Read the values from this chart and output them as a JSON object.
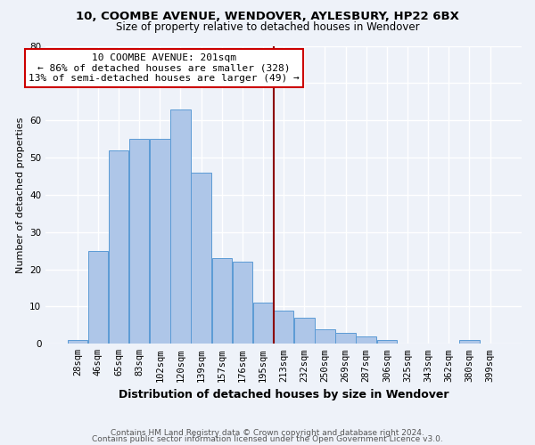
{
  "title1": "10, COOMBE AVENUE, WENDOVER, AYLESBURY, HP22 6BX",
  "title2": "Size of property relative to detached houses in Wendover",
  "xlabel": "Distribution of detached houses by size in Wendover",
  "ylabel": "Number of detached properties",
  "footer1": "Contains HM Land Registry data © Crown copyright and database right 2024.",
  "footer2": "Contains public sector information licensed under the Open Government Licence v3.0.",
  "annotation_line1": "10 COOMBE AVENUE: 201sqm",
  "annotation_line2": "← 86% of detached houses are smaller (328)",
  "annotation_line3": "13% of semi-detached houses are larger (49) →",
  "bar_labels": [
    "28sqm",
    "46sqm",
    "65sqm",
    "83sqm",
    "102sqm",
    "120sqm",
    "139sqm",
    "157sqm",
    "176sqm",
    "195sqm",
    "213sqm",
    "232sqm",
    "250sqm",
    "269sqm",
    "287sqm",
    "306sqm",
    "325sqm",
    "343sqm",
    "362sqm",
    "380sqm",
    "399sqm"
  ],
  "bar_values": [
    1,
    25,
    52,
    55,
    55,
    63,
    46,
    23,
    22,
    11,
    9,
    7,
    4,
    3,
    2,
    1,
    0,
    0,
    0,
    1,
    0
  ],
  "bar_color": "#aec6e8",
  "bar_edge_color": "#5b9bd5",
  "marker_color": "#8b0000",
  "ylim": [
    0,
    80
  ],
  "yticks": [
    0,
    10,
    20,
    30,
    40,
    50,
    60,
    70,
    80
  ],
  "bg_color": "#eef2f9",
  "grid_color": "#ffffff",
  "annotation_box_edge": "#cc0000",
  "title1_fontsize": 9.5,
  "title2_fontsize": 8.5,
  "xlabel_fontsize": 9,
  "ylabel_fontsize": 8,
  "tick_fontsize": 7.5,
  "annot_fontsize": 8,
  "footer_fontsize": 6.5
}
